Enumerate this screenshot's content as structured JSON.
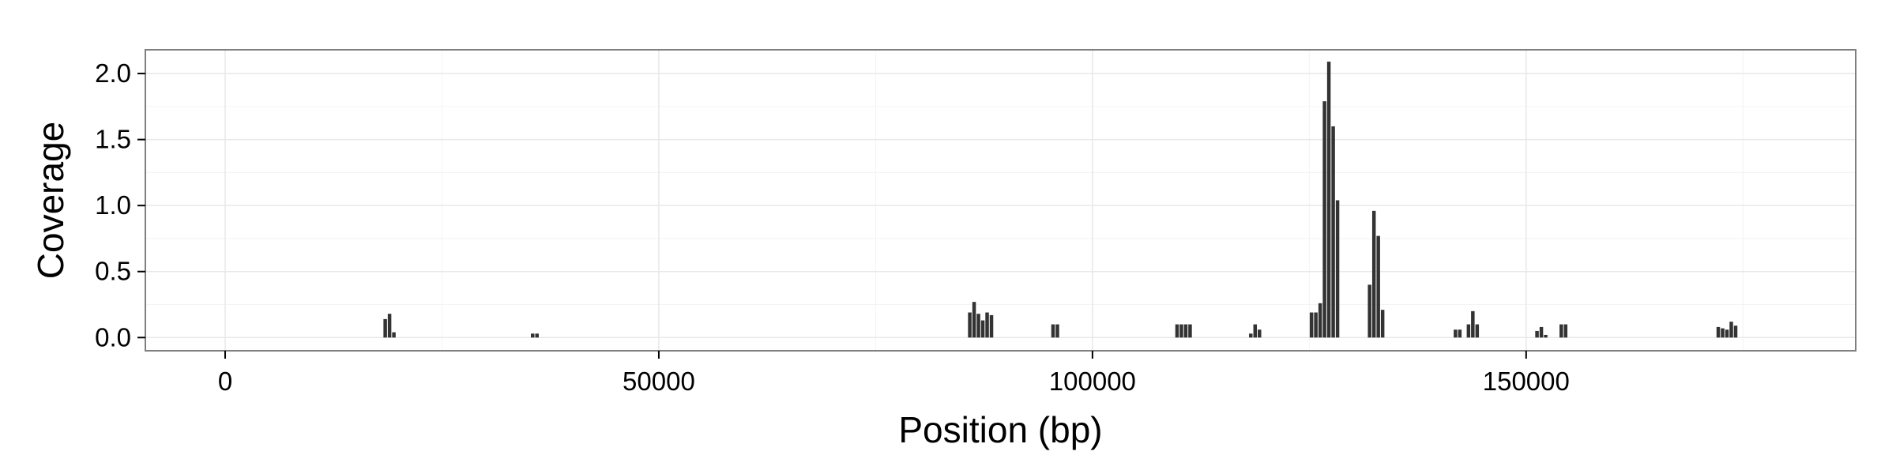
{
  "colors": {
    "bar": "#333333",
    "panel_border": "#7f7f7f",
    "grid_major": "#e8e8e8",
    "grid_minor": "#f3f3f3",
    "tick": "#000000",
    "background": "#ffffff"
  },
  "chart_data": {
    "type": "bar",
    "title": "",
    "xlabel": "Position (bp)",
    "ylabel": "Coverage",
    "xlim": [
      -9200,
      188000
    ],
    "ylim": [
      -0.1,
      2.18
    ],
    "xticks": [
      0,
      50000,
      100000,
      150000
    ],
    "xtick_labels": [
      "0",
      "50000",
      "100000",
      "150000"
    ],
    "yticks": [
      0.0,
      0.5,
      1.0,
      1.5,
      2.0
    ],
    "ytick_labels": [
      "0.0",
      "0.5",
      "1.0",
      "1.5",
      "2.0"
    ],
    "grid": true,
    "bar_width": 500,
    "x": [
      18500,
      19000,
      19500,
      35500,
      36000,
      85900,
      86400,
      86900,
      87400,
      87900,
      88400,
      95500,
      96000,
      109800,
      110300,
      110800,
      111300,
      118300,
      118800,
      119300,
      125300,
      125800,
      126300,
      126800,
      127300,
      127800,
      128300,
      132000,
      132500,
      133000,
      133500,
      141900,
      142400,
      143400,
      143900,
      144400,
      151300,
      151800,
      152300,
      154100,
      154600,
      172200,
      172700,
      173200,
      173700,
      174200
    ],
    "values": [
      0.14,
      0.18,
      0.04,
      0.03,
      0.03,
      0.19,
      0.27,
      0.18,
      0.13,
      0.19,
      0.17,
      0.1,
      0.1,
      0.1,
      0.1,
      0.1,
      0.1,
      0.03,
      0.1,
      0.06,
      0.19,
      0.19,
      0.26,
      1.79,
      2.09,
      1.6,
      1.04,
      0.4,
      0.96,
      0.77,
      0.21,
      0.06,
      0.06,
      0.1,
      0.2,
      0.1,
      0.05,
      0.08,
      0.02,
      0.1,
      0.1,
      0.08,
      0.07,
      0.06,
      0.12,
      0.09
    ]
  }
}
